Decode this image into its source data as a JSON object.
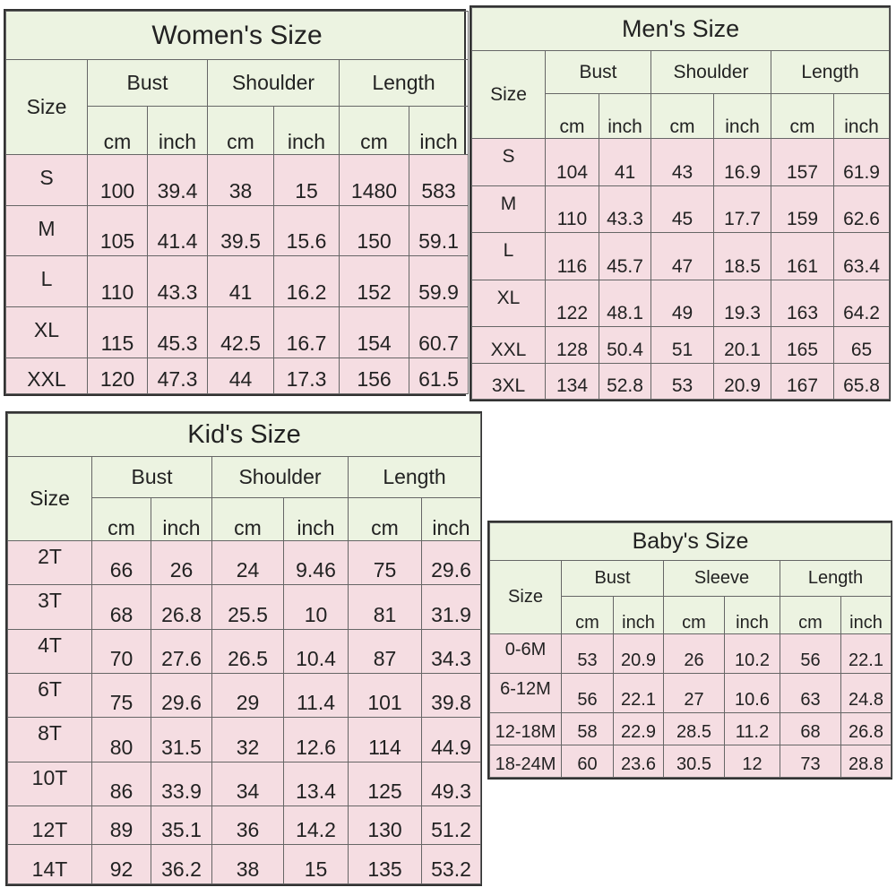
{
  "women": {
    "title": "Women's Size",
    "size_label": "Size",
    "groups": [
      "Bust",
      "Shoulder",
      "Length"
    ],
    "units": [
      "cm",
      "inch",
      "cm",
      "inch",
      "cm",
      "inch"
    ],
    "rows": [
      {
        "size": "S",
        "values": [
          "100",
          "39.4",
          "38",
          "15",
          "1480",
          "583"
        ]
      },
      {
        "size": "M",
        "values": [
          "105",
          "41.4",
          "39.5",
          "15.6",
          "150",
          "59.1"
        ]
      },
      {
        "size": "L",
        "values": [
          "110",
          "43.3",
          "41",
          "16.2",
          "152",
          "59.9"
        ]
      },
      {
        "size": "XL",
        "values": [
          "115",
          "45.3",
          "42.5",
          "16.7",
          "154",
          "60.7"
        ]
      },
      {
        "size": "XXL",
        "values": [
          "120",
          "47.3",
          "44",
          "17.3",
          "156",
          "61.5"
        ]
      }
    ]
  },
  "men": {
    "title": "Men's Size",
    "size_label": "Size",
    "groups": [
      "Bust",
      "Shoulder",
      "Length"
    ],
    "units": [
      "cm",
      "inch",
      "cm",
      "inch",
      "cm",
      "inch"
    ],
    "rows": [
      {
        "size": "S",
        "values": [
          "104",
          "41",
          "43",
          "16.9",
          "157",
          "61.9"
        ]
      },
      {
        "size": "M",
        "values": [
          "110",
          "43.3",
          "45",
          "17.7",
          "159",
          "62.6"
        ]
      },
      {
        "size": "L",
        "values": [
          "116",
          "45.7",
          "47",
          "18.5",
          "161",
          "63.4"
        ]
      },
      {
        "size": "XL",
        "values": [
          "122",
          "48.1",
          "49",
          "19.3",
          "163",
          "64.2"
        ]
      },
      {
        "size": "XXL",
        "values": [
          "128",
          "50.4",
          "51",
          "20.1",
          "165",
          "65"
        ]
      },
      {
        "size": "3XL",
        "values": [
          "134",
          "52.8",
          "53",
          "20.9",
          "167",
          "65.8"
        ]
      }
    ]
  },
  "kids": {
    "title": "Kid's Size",
    "size_label": "Size",
    "groups": [
      "Bust",
      "Shoulder",
      "Length"
    ],
    "units": [
      "cm",
      "inch",
      "cm",
      "inch",
      "cm",
      "inch"
    ],
    "rows": [
      {
        "size": "2T",
        "values": [
          "66",
          "26",
          "24",
          "9.46",
          "75",
          "29.6"
        ]
      },
      {
        "size": "3T",
        "values": [
          "68",
          "26.8",
          "25.5",
          "10",
          "81",
          "31.9"
        ]
      },
      {
        "size": "4T",
        "values": [
          "70",
          "27.6",
          "26.5",
          "10.4",
          "87",
          "34.3"
        ]
      },
      {
        "size": "6T",
        "values": [
          "75",
          "29.6",
          "29",
          "11.4",
          "101",
          "39.8"
        ]
      },
      {
        "size": "8T",
        "values": [
          "80",
          "31.5",
          "32",
          "12.6",
          "114",
          "44.9"
        ]
      },
      {
        "size": "10T",
        "values": [
          "86",
          "33.9",
          "34",
          "13.4",
          "125",
          "49.3"
        ]
      },
      {
        "size": "12T",
        "values": [
          "89",
          "35.1",
          "36",
          "14.2",
          "130",
          "51.2"
        ]
      },
      {
        "size": "14T",
        "values": [
          "92",
          "36.2",
          "38",
          "15",
          "135",
          "53.2"
        ]
      }
    ]
  },
  "baby": {
    "title": "Baby's Size",
    "size_label": "Size",
    "groups": [
      "Bust",
      "Sleeve",
      "Length"
    ],
    "units": [
      "cm",
      "inch",
      "cm",
      "inch",
      "cm",
      "inch"
    ],
    "rows": [
      {
        "size": "0-6M",
        "values": [
          "53",
          "20.9",
          "26",
          "10.2",
          "56",
          "22.1"
        ]
      },
      {
        "size": "6-12M",
        "values": [
          "56",
          "22.1",
          "27",
          "10.6",
          "63",
          "24.8"
        ]
      },
      {
        "size": "12-18M",
        "values": [
          "58",
          "22.9",
          "28.5",
          "11.2",
          "68",
          "26.8"
        ]
      },
      {
        "size": "18-24M",
        "values": [
          "60",
          "23.6",
          "30.5",
          "12",
          "73",
          "28.8"
        ]
      }
    ]
  }
}
